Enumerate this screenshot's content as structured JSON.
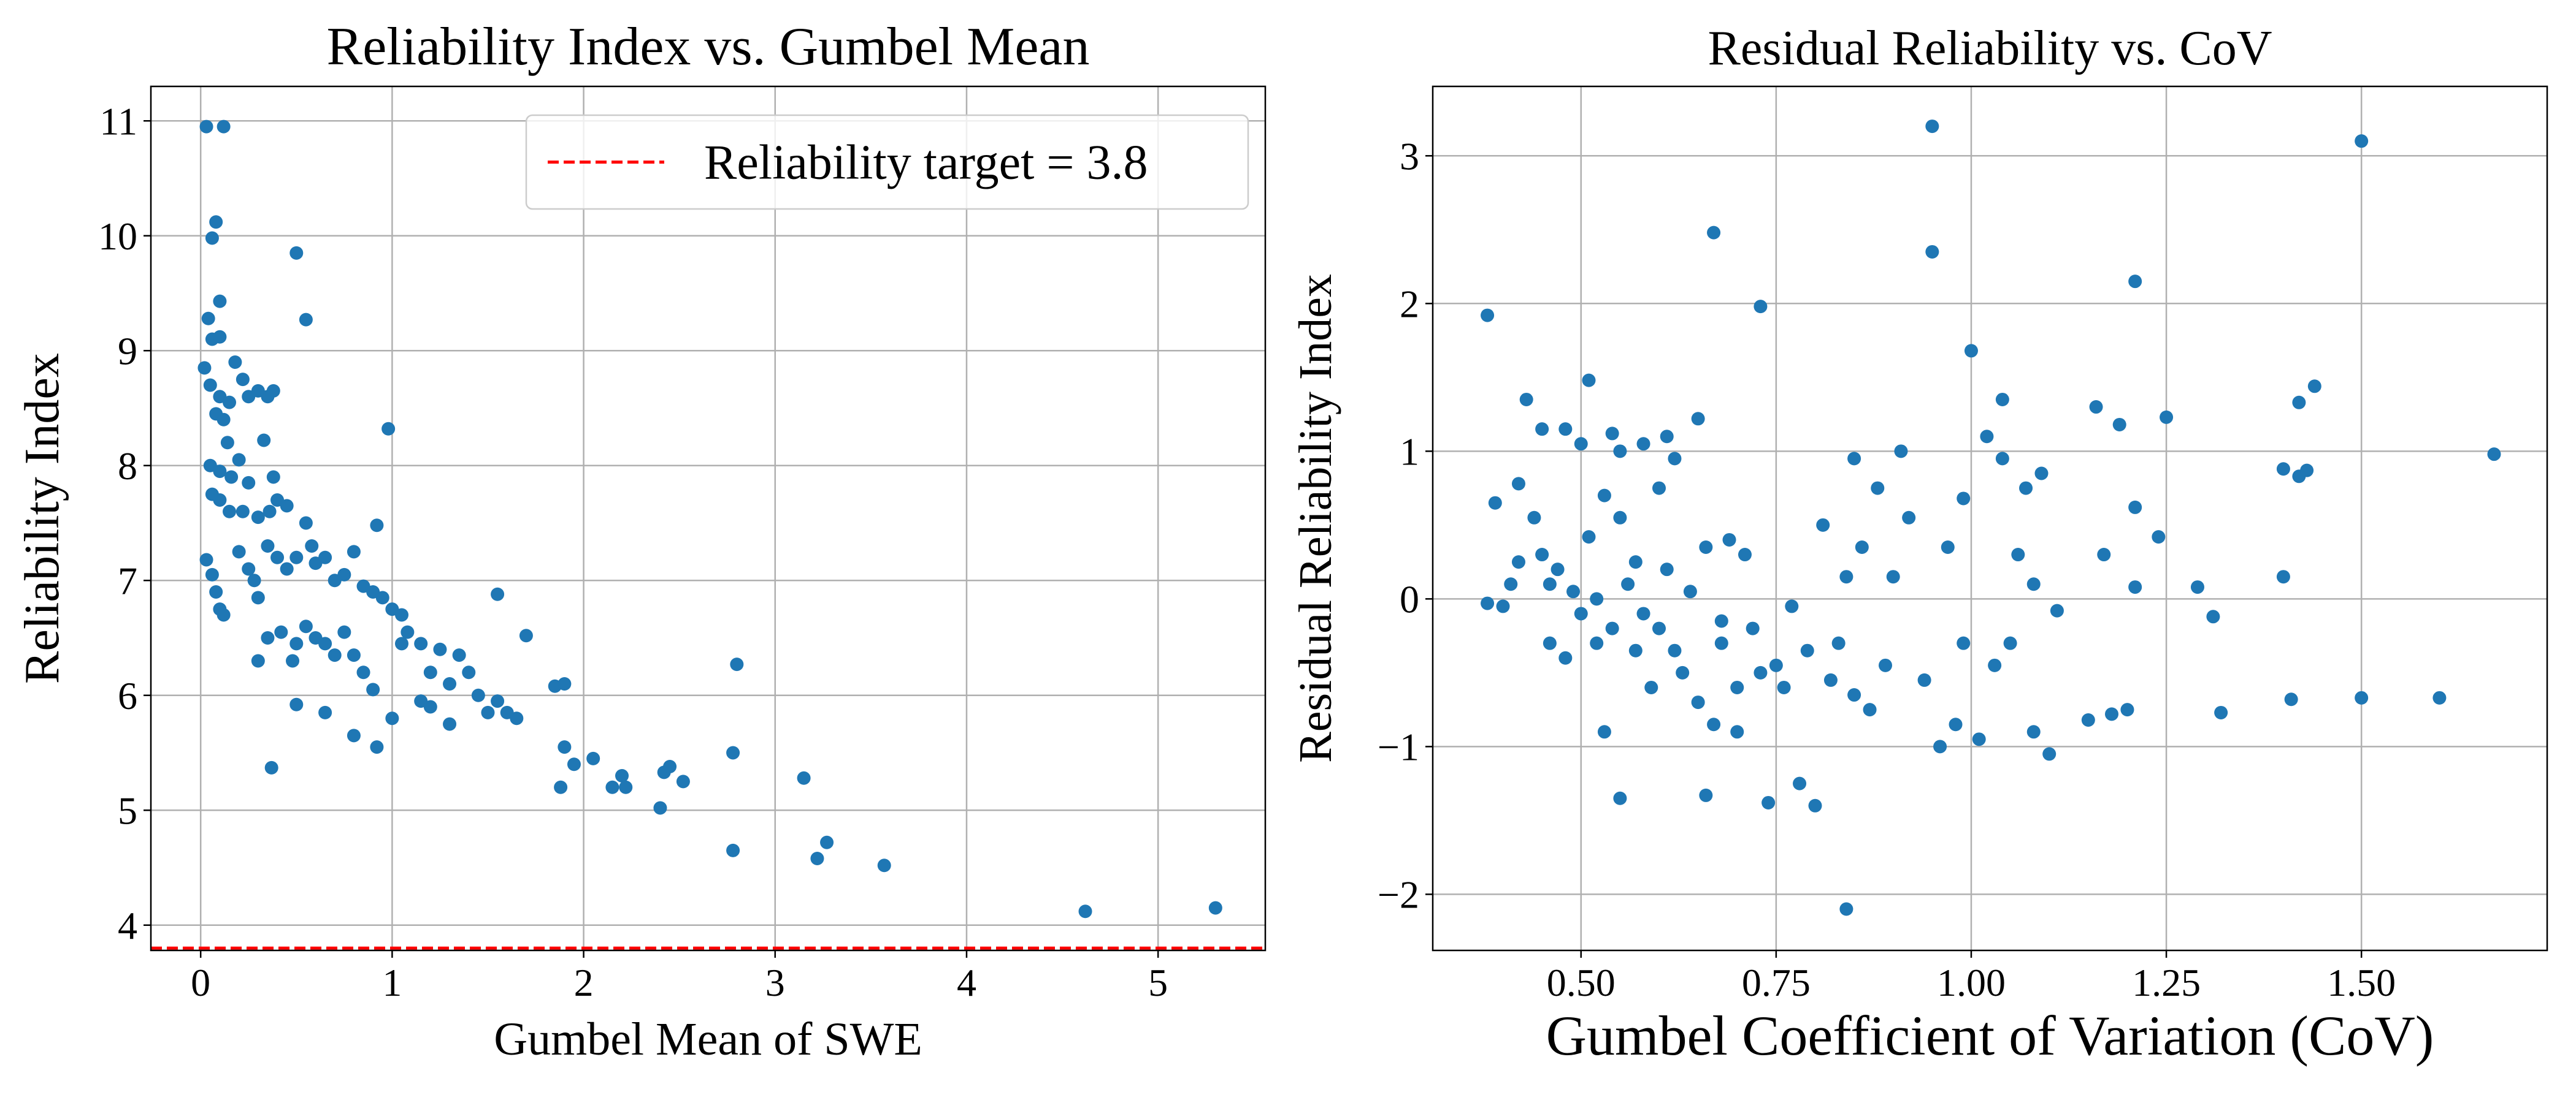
{
  "chart_data": [
    {
      "type": "scatter",
      "title": "Reliability Index vs. Gumbel Mean",
      "x_label": "Gumbel Mean of SWE",
      "y_label": "Reliability Index",
      "color": "#1f77b4",
      "grid": true,
      "legend": "upper right",
      "xlim": [
        -0.26,
        5.56
      ],
      "ylim": [
        3.78,
        11.3
      ],
      "xticks": [
        0,
        1,
        2,
        3,
        4,
        5
      ],
      "yticks": [
        4,
        5,
        6,
        7,
        8,
        9,
        10,
        11
      ],
      "hline": {
        "value": 3.8,
        "label": "Reliability target = 3.8",
        "color": "#ff0000"
      },
      "x": [
        0.03,
        0.12,
        0.08,
        0.06,
        0.1,
        0.04,
        0.06,
        0.1,
        0.5,
        0.55,
        0.02,
        0.05,
        0.1,
        0.15,
        0.18,
        0.22,
        0.25,
        0.3,
        0.35,
        0.38,
        0.33,
        0.08,
        0.12,
        0.14,
        0.05,
        0.1,
        0.16,
        0.2,
        0.25,
        0.06,
        0.1,
        0.15,
        0.22,
        0.3,
        0.36,
        0.4,
        0.45,
        0.38,
        0.98,
        0.03,
        0.06,
        0.08,
        0.1,
        0.12,
        0.2,
        0.25,
        0.28,
        0.3,
        0.35,
        0.4,
        0.45,
        0.5,
        0.55,
        0.58,
        0.6,
        0.65,
        0.7,
        0.75,
        0.8,
        0.85,
        0.9,
        0.92,
        0.95,
        1.0,
        1.05,
        1.08,
        0.35,
        0.42,
        0.5,
        0.55,
        0.6,
        0.65,
        0.7,
        0.75,
        0.8,
        0.85,
        0.9,
        0.3,
        0.48,
        0.5,
        0.65,
        0.8,
        0.92,
        0.37,
        1.0,
        1.05,
        1.15,
        1.2,
        1.25,
        1.3,
        1.35,
        1.4,
        1.45,
        1.5,
        1.55,
        1.6,
        1.65,
        1.55,
        1.7,
        1.2,
        1.3,
        1.15,
        1.85,
        1.9,
        1.9,
        1.95,
        1.88,
        2.05,
        2.15,
        2.2,
        2.22,
        2.4,
        2.42,
        2.45,
        2.52,
        2.78,
        2.8,
        2.78,
        3.15,
        3.22,
        3.27,
        3.57,
        4.62,
        5.3
      ],
      "y": [
        10.95,
        10.95,
        10.12,
        9.98,
        9.43,
        9.28,
        9.1,
        9.12,
        9.85,
        9.27,
        8.85,
        8.7,
        8.6,
        8.55,
        8.9,
        8.75,
        8.6,
        8.65,
        8.6,
        8.65,
        8.22,
        8.45,
        8.4,
        8.2,
        8.0,
        7.95,
        7.9,
        8.05,
        7.85,
        7.75,
        7.7,
        7.6,
        7.6,
        7.55,
        7.6,
        7.7,
        7.65,
        7.9,
        8.32,
        7.18,
        7.05,
        6.9,
        6.75,
        6.7,
        7.25,
        7.1,
        7.0,
        6.85,
        7.3,
        7.2,
        7.1,
        7.2,
        7.5,
        7.3,
        7.15,
        7.2,
        7.0,
        7.05,
        7.25,
        6.95,
        6.9,
        7.48,
        6.85,
        6.75,
        6.7,
        6.55,
        6.5,
        6.55,
        6.45,
        6.6,
        6.5,
        6.45,
        6.35,
        6.55,
        6.35,
        6.2,
        6.05,
        6.3,
        6.3,
        5.92,
        5.85,
        5.65,
        5.55,
        5.37,
        5.8,
        6.45,
        6.45,
        6.2,
        6.4,
        6.1,
        6.35,
        6.2,
        6.0,
        5.85,
        5.95,
        5.85,
        5.8,
        6.88,
        6.52,
        5.9,
        5.75,
        5.95,
        6.08,
        6.1,
        5.55,
        5.4,
        5.2,
        5.45,
        5.2,
        5.3,
        5.2,
        5.02,
        5.33,
        5.38,
        5.25,
        5.5,
        6.27,
        4.65,
        5.28,
        4.58,
        4.72,
        4.52,
        4.12,
        4.15
      ]
    },
    {
      "type": "scatter",
      "title": "Residual Reliability vs. CoV",
      "x_label": "Gumbel Coefficient of Variation (CoV)",
      "y_label": "Residual Reliability Index",
      "color": "#1f77b4",
      "grid": true,
      "xlim": [
        0.31,
        1.738
      ],
      "ylim": [
        -2.38,
        3.47
      ],
      "xticks": [
        {
          "value": 0.5,
          "label": "0.50"
        },
        {
          "value": 0.75,
          "label": "0.75"
        },
        {
          "value": 1.0,
          "label": "1.00"
        },
        {
          "value": 1.25,
          "label": "1.25"
        },
        {
          "value": 1.5,
          "label": "1.50"
        }
      ],
      "yticks": [
        {
          "value": -2,
          "label": "−2"
        },
        {
          "value": -1,
          "label": "−1"
        },
        0,
        1,
        2,
        3
      ],
      "x": [
        0.38,
        0.38,
        0.39,
        0.4,
        0.41,
        0.42,
        0.42,
        0.43,
        0.44,
        0.45,
        0.45,
        0.46,
        0.46,
        0.47,
        0.48,
        0.48,
        0.49,
        0.5,
        0.5,
        0.51,
        0.51,
        0.52,
        0.52,
        0.53,
        0.53,
        0.54,
        0.54,
        0.55,
        0.55,
        0.55,
        0.56,
        0.57,
        0.57,
        0.58,
        0.58,
        0.59,
        0.6,
        0.6,
        0.61,
        0.61,
        0.62,
        0.62,
        0.63,
        0.64,
        0.65,
        0.65,
        0.66,
        0.66,
        0.67,
        0.67,
        0.68,
        0.68,
        0.69,
        0.7,
        0.7,
        0.71,
        0.72,
        0.73,
        0.73,
        0.74,
        0.75,
        0.76,
        0.77,
        0.78,
        0.79,
        0.8,
        0.81,
        0.82,
        0.83,
        0.84,
        0.84,
        0.85,
        0.85,
        0.86,
        0.87,
        0.88,
        0.89,
        0.9,
        0.91,
        0.92,
        0.94,
        0.95,
        0.95,
        0.96,
        0.97,
        0.98,
        0.99,
        0.99,
        1.0,
        1.01,
        1.02,
        1.03,
        1.04,
        1.04,
        1.05,
        1.06,
        1.07,
        1.08,
        1.08,
        1.09,
        1.1,
        1.11,
        1.15,
        1.16,
        1.17,
        1.18,
        1.19,
        1.2,
        1.21,
        1.21,
        1.21,
        1.24,
        1.25,
        1.29,
        1.31,
        1.32,
        1.4,
        1.4,
        1.41,
        1.42,
        1.42,
        1.43,
        1.44,
        1.5,
        1.5,
        1.6,
        1.67
      ],
      "y": [
        1.92,
        -0.03,
        0.65,
        -0.05,
        0.1,
        0.25,
        0.78,
        1.35,
        0.55,
        1.15,
        0.3,
        0.1,
        -0.3,
        0.2,
        -0.4,
        1.15,
        0.05,
        1.05,
        -0.1,
        1.48,
        0.42,
        -0.3,
        0.0,
        -0.9,
        0.7,
        1.12,
        -0.2,
        -1.35,
        0.55,
        1.0,
        0.1,
        -0.35,
        0.25,
        1.05,
        -0.1,
        -0.6,
        0.75,
        -0.2,
        1.1,
        0.2,
        -0.35,
        0.95,
        -0.5,
        0.05,
        1.22,
        -0.7,
        -1.33,
        0.35,
        -0.85,
        2.48,
        -0.15,
        -0.3,
        0.4,
        -0.9,
        -0.6,
        0.3,
        -0.2,
        1.98,
        -0.5,
        -1.38,
        -0.45,
        -0.6,
        -0.05,
        -1.25,
        -0.35,
        -1.4,
        0.5,
        -0.55,
        -0.3,
        -2.1,
        0.15,
        0.95,
        -0.65,
        0.35,
        -0.75,
        0.75,
        -0.45,
        0.15,
        1.0,
        0.55,
        -0.55,
        3.2,
        2.35,
        -1.0,
        0.35,
        -0.85,
        -0.3,
        0.68,
        1.68,
        -0.95,
        1.1,
        -0.45,
        0.95,
        1.35,
        -0.3,
        0.3,
        0.75,
        0.1,
        -0.9,
        0.85,
        -1.05,
        -0.08,
        -0.82,
        1.3,
        0.3,
        -0.78,
        1.18,
        -0.75,
        2.15,
        0.62,
        0.08,
        0.42,
        1.23,
        0.08,
        -0.12,
        -0.77,
        0.88,
        0.15,
        -0.68,
        1.33,
        0.83,
        0.87,
        1.44,
        3.1,
        -0.67,
        -0.67,
        0.98
      ]
    }
  ]
}
